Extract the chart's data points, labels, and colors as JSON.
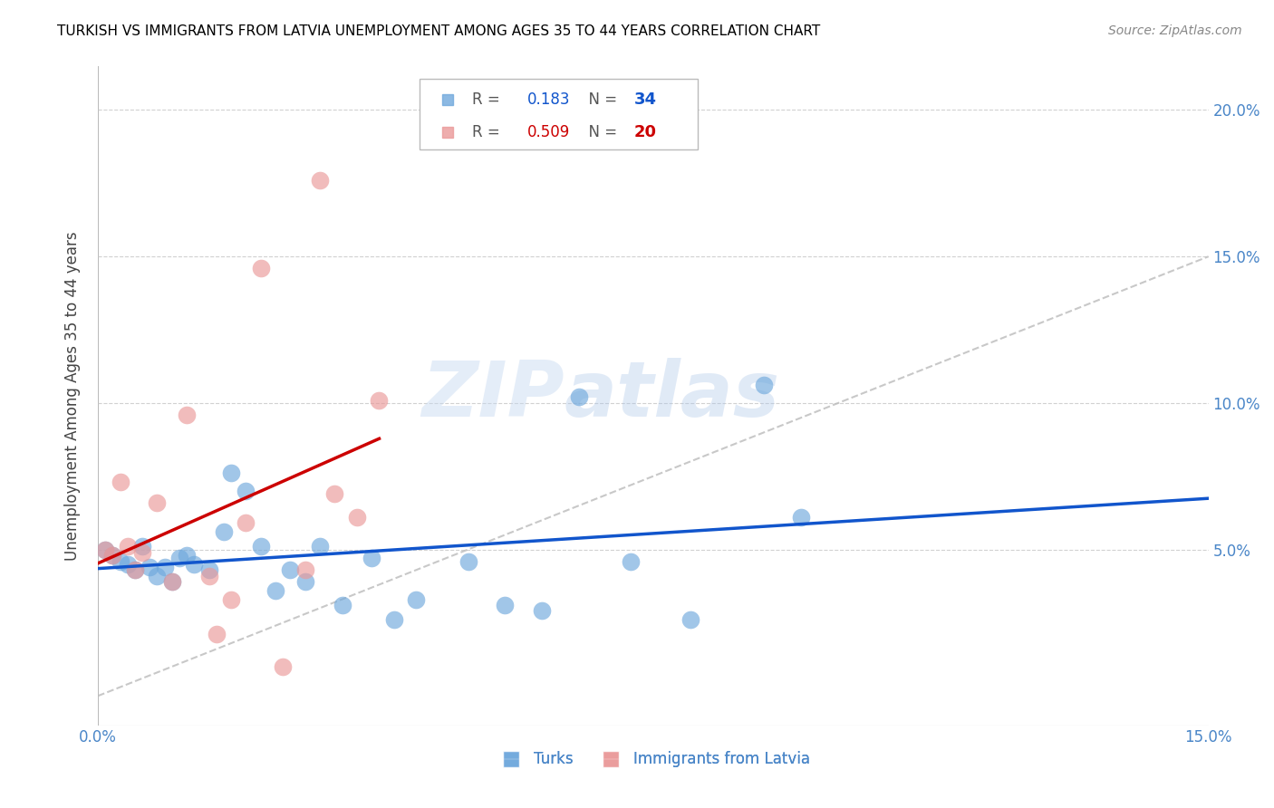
{
  "title": "TURKISH VS IMMIGRANTS FROM LATVIA UNEMPLOYMENT AMONG AGES 35 TO 44 YEARS CORRELATION CHART",
  "source": "Source: ZipAtlas.com",
  "ylabel": "Unemployment Among Ages 35 to 44 years",
  "xmin": 0.0,
  "xmax": 0.15,
  "ymin": -0.01,
  "ymax": 0.215,
  "right_yticks": [
    0.05,
    0.1,
    0.15,
    0.2
  ],
  "right_yticklabels": [
    "5.0%",
    "10.0%",
    "15.0%",
    "20.0%"
  ],
  "xticks": [
    0.0,
    0.15
  ],
  "xticklabels": [
    "0.0%",
    "15.0%"
  ],
  "turks_x": [
    0.001,
    0.002,
    0.003,
    0.004,
    0.005,
    0.006,
    0.007,
    0.008,
    0.009,
    0.01,
    0.011,
    0.012,
    0.013,
    0.015,
    0.017,
    0.018,
    0.02,
    0.022,
    0.024,
    0.026,
    0.028,
    0.03,
    0.033,
    0.037,
    0.04,
    0.043,
    0.05,
    0.055,
    0.06,
    0.065,
    0.072,
    0.08,
    0.09,
    0.095
  ],
  "turks_y": [
    0.05,
    0.048,
    0.046,
    0.045,
    0.043,
    0.051,
    0.044,
    0.041,
    0.044,
    0.039,
    0.047,
    0.048,
    0.045,
    0.043,
    0.056,
    0.076,
    0.07,
    0.051,
    0.036,
    0.043,
    0.039,
    0.051,
    0.031,
    0.047,
    0.026,
    0.033,
    0.046,
    0.031,
    0.029,
    0.102,
    0.046,
    0.026,
    0.106,
    0.061
  ],
  "latvia_x": [
    0.001,
    0.002,
    0.003,
    0.004,
    0.005,
    0.006,
    0.008,
    0.01,
    0.012,
    0.015,
    0.016,
    0.018,
    0.02,
    0.022,
    0.025,
    0.028,
    0.03,
    0.032,
    0.035,
    0.038
  ],
  "latvia_y": [
    0.05,
    0.048,
    0.073,
    0.051,
    0.043,
    0.049,
    0.066,
    0.039,
    0.096,
    0.041,
    0.021,
    0.033,
    0.059,
    0.146,
    0.01,
    0.043,
    0.176,
    0.069,
    0.061,
    0.101
  ],
  "turks_color": "#6fa8dc",
  "latvia_color": "#ea9999",
  "turks_line_color": "#1155cc",
  "latvia_line_color": "#cc0000",
  "turks_R": 0.183,
  "turks_N": 34,
  "latvia_R": 0.509,
  "latvia_N": 20,
  "legend_label_turks": "Turks",
  "legend_label_latvia": "Immigrants from Latvia",
  "watermark_zip": "ZIP",
  "watermark_atlas": "atlas",
  "background_color": "#ffffff",
  "grid_color": "#cccccc",
  "title_color": "#000000",
  "axis_label_color": "#434343",
  "tick_color": "#4a86c8",
  "source_color": "#888888"
}
